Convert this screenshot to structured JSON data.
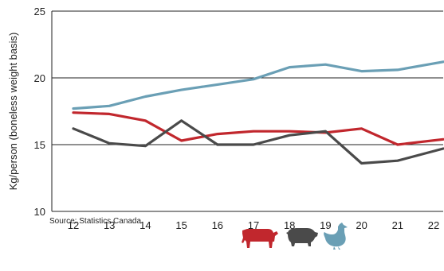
{
  "chart_data": {
    "type": "line",
    "ylabel": "Kg/person (boneless weight basis)",
    "ylim": [
      10,
      25
    ],
    "yticks": [
      10,
      15,
      20,
      25
    ],
    "x": [
      "12",
      "13",
      "14",
      "15",
      "16",
      "17",
      "18",
      "19",
      "20",
      "21",
      "22"
    ],
    "grid": "horizontal",
    "series": [
      {
        "key": "chicken",
        "color": "#6a9fb5",
        "values": [
          17.7,
          17.9,
          18.6,
          19.1,
          19.5,
          19.9,
          20.8,
          21.0,
          20.5,
          20.6,
          21.2
        ]
      },
      {
        "key": "beef",
        "color": "#c1272d",
        "values": [
          17.4,
          17.3,
          16.8,
          15.3,
          15.8,
          16.0,
          16.0,
          15.9,
          16.2,
          15.0,
          15.4
        ]
      },
      {
        "key": "pork",
        "color": "#4a4a4a",
        "values": [
          16.2,
          15.1,
          14.9,
          16.8,
          15.0,
          15.0,
          15.7,
          16.0,
          13.6,
          13.8,
          14.7
        ]
      }
    ],
    "source": "Source: Statistics Canada",
    "legend_icons": [
      {
        "name": "cow-icon",
        "color": "#c1272d"
      },
      {
        "name": "pig-icon",
        "color": "#4a4a4a"
      },
      {
        "name": "chicken-icon",
        "color": "#6a9fb5"
      }
    ]
  }
}
